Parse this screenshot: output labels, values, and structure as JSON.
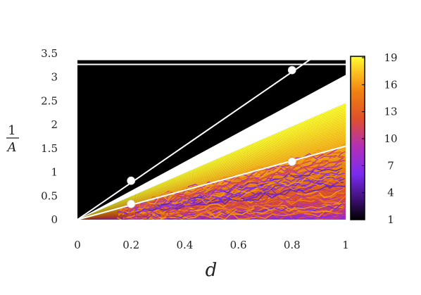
{
  "chart_data": {
    "type": "heatmap",
    "title": "",
    "xlabel": "d",
    "ylabel_numerator": "1",
    "ylabel_denominator": "A",
    "xlim": [
      0,
      1
    ],
    "ylim": [
      0,
      3.5
    ],
    "x_ticks": [
      "0",
      "0.2",
      "0.4",
      "0.6",
      "0.8",
      "1"
    ],
    "y_ticks": [
      "0",
      "0.5",
      "1",
      "1.5",
      "2",
      "2.5",
      "3",
      "3.5"
    ],
    "colorbar": {
      "range": [
        1,
        19
      ],
      "ticks": [
        "1",
        "4",
        "7",
        "10",
        "13",
        "16",
        "19"
      ],
      "colors": [
        "#000000",
        "#3b0f70",
        "#7b2cf0",
        "#b42fb4",
        "#e0502a",
        "#f08010",
        "#fbc020",
        "#ffff30"
      ]
    },
    "fan": {
      "white_band_slope": [
        2.45,
        3.05
      ],
      "colored_top_slope": 2.45,
      "colored_bottom_slope": 0,
      "dense_lines_slope_max": 1.6,
      "black_region_upper_y": 3.27
    },
    "lines": [
      {
        "type": "horizontal",
        "y": 3.27,
        "color": "#ffffff"
      },
      {
        "type": "line",
        "x": [
          0,
          0.9
        ],
        "y": [
          0,
          3.5
        ],
        "color": "#ffffff"
      },
      {
        "type": "line",
        "x": [
          0,
          1
        ],
        "y": [
          0,
          1.55
        ],
        "color": "#ffffff"
      }
    ],
    "points": [
      {
        "x": 0.2,
        "y": 0.82
      },
      {
        "x": 0.8,
        "y": 3.15
      },
      {
        "x": 0.2,
        "y": 0.33
      },
      {
        "x": 0.8,
        "y": 1.22
      }
    ]
  }
}
